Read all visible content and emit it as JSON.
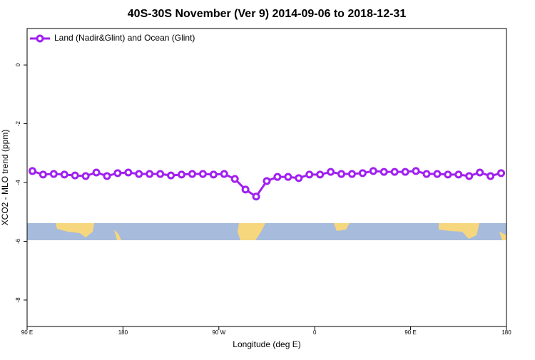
{
  "chart_data": {
    "type": "line",
    "title": "40S-30S November (Ver 9)   2014-09-06 to 2018-12-31",
    "x_label": "Longitude (deg E)",
    "y_label": "XCO2 - MLO trend (ppm)",
    "x": [
      95,
      105,
      115,
      125,
      135,
      145,
      155,
      165,
      175,
      185,
      195,
      205,
      215,
      225,
      235,
      245,
      255,
      265,
      275,
      285,
      295,
      305,
      315,
      325,
      335,
      345,
      355,
      365,
      375,
      385,
      395,
      405,
      415,
      425,
      435,
      445,
      455,
      465,
      475,
      485,
      495,
      505,
      515,
      525,
      535
    ],
    "series": [
      {
        "name": "Land (Nadir&Glint) and Ocean (Glint)",
        "color": "#a020f0",
        "values": [
          -3.61,
          -3.73,
          -3.71,
          -3.73,
          -3.76,
          -3.78,
          -3.66,
          -3.78,
          -3.68,
          -3.66,
          -3.71,
          -3.71,
          -3.71,
          -3.76,
          -3.73,
          -3.71,
          -3.71,
          -3.73,
          -3.71,
          -3.88,
          -4.24,
          -4.48,
          -3.95,
          -3.81,
          -3.81,
          -3.85,
          -3.73,
          -3.73,
          -3.64,
          -3.71,
          -3.71,
          -3.68,
          -3.61,
          -3.64,
          -3.64,
          -3.64,
          -3.61,
          -3.71,
          -3.71,
          -3.73,
          -3.73,
          -3.78,
          -3.66,
          -3.78,
          -3.68
        ]
      }
    ],
    "xlim": [
      90,
      540
    ],
    "xticks": [
      {
        "value": 90,
        "label": "90 E"
      },
      180,
      {
        "value": 270,
        "label": "90 W"
      },
      {
        "value": 360,
        "label": "0"
      },
      {
        "value": 450,
        "label": "90 E"
      },
      {
        "value": 540,
        "label": "180"
      }
    ],
    "ylim": [
      -8.9,
      1.24
    ],
    "yticks": [
      0,
      -2,
      -4,
      -6,
      -8
    ],
    "legend": "top-left"
  }
}
